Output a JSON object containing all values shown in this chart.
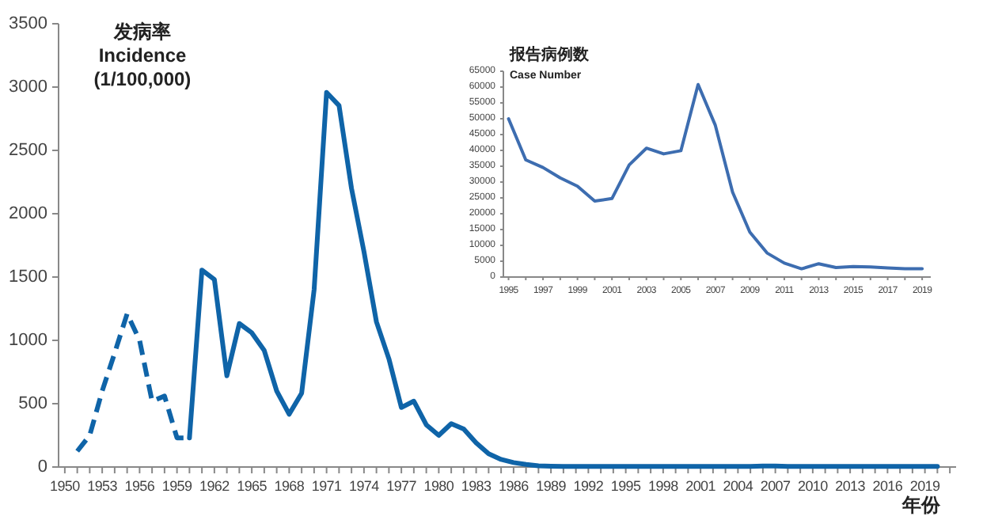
{
  "chart_data": [
    {
      "type": "line",
      "xlabel": "年份",
      "ylabel": "发病率\nIncidence\n(1/100,000)",
      "xlim": [
        1949.5,
        2021.5
      ],
      "ylim": [
        0,
        3500
      ],
      "yticks": [
        0,
        500,
        1000,
        1500,
        2000,
        2500,
        3000,
        3500
      ],
      "xticks": [
        1950,
        {
          "value": 1951,
          "label": null
        },
        {
          "value": 1952,
          "label": null
        },
        1953,
        {
          "value": 1954,
          "label": null
        },
        {
          "value": 1955,
          "label": null
        },
        1956,
        {
          "value": 1957,
          "label": null
        },
        {
          "value": 1958,
          "label": null
        },
        1959,
        {
          "value": 1960,
          "label": null
        },
        {
          "value": 1961,
          "label": null
        },
        1962,
        {
          "value": 1963,
          "label": null
        },
        {
          "value": 1964,
          "label": null
        },
        1965,
        {
          "value": 1966,
          "label": null
        },
        {
          "value": 1967,
          "label": null
        },
        1968,
        {
          "value": 1969,
          "label": null
        },
        {
          "value": 1970,
          "label": null
        },
        1971,
        {
          "value": 1972,
          "label": null
        },
        {
          "value": 1973,
          "label": null
        },
        1974,
        {
          "value": 1975,
          "label": null
        },
        {
          "value": 1976,
          "label": null
        },
        1977,
        {
          "value": 1978,
          "label": null
        },
        {
          "value": 1979,
          "label": null
        },
        1980,
        {
          "value": 1981,
          "label": null
        },
        {
          "value": 1982,
          "label": null
        },
        1983,
        {
          "value": 1984,
          "label": null
        },
        {
          "value": 1985,
          "label": null
        },
        1986,
        {
          "value": 1987,
          "label": null
        },
        {
          "value": 1988,
          "label": null
        },
        1989,
        {
          "value": 1990,
          "label": null
        },
        {
          "value": 1991,
          "label": null
        },
        1992,
        {
          "value": 1993,
          "label": null
        },
        {
          "value": 1994,
          "label": null
        },
        1995,
        {
          "value": 1996,
          "label": null
        },
        {
          "value": 1997,
          "label": null
        },
        1998,
        {
          "value": 1999,
          "label": null
        },
        {
          "value": 2000,
          "label": null
        },
        2001,
        {
          "value": 2002,
          "label": null
        },
        {
          "value": 2003,
          "label": null
        },
        2004,
        {
          "value": 2005,
          "label": null
        },
        {
          "value": 2006,
          "label": null
        },
        2007,
        {
          "value": 2008,
          "label": null
        },
        {
          "value": 2009,
          "label": null
        },
        2010,
        {
          "value": 2011,
          "label": null
        },
        {
          "value": 2012,
          "label": null
        },
        2013,
        {
          "value": 2014,
          "label": null
        },
        {
          "value": 2015,
          "label": null
        },
        2016,
        {
          "value": 2017,
          "label": null
        },
        {
          "value": 2018,
          "label": null
        },
        2019,
        {
          "value": 2020,
          "label": null
        },
        {
          "value": 2021,
          "label": null
        }
      ],
      "series": [
        {
          "color": "#0f64a8",
          "line_style": "dashed",
          "x": [
            1951,
            1952,
            1953,
            1954,
            1955,
            1956,
            1957,
            1958,
            1959,
            1960
          ],
          "values": [
            125,
            250,
            600,
            900,
            1210,
            1000,
            520,
            560,
            230,
            230
          ]
        },
        {
          "color": "#0f64a8",
          "line_style": "solid",
          "x": [
            1960,
            1961,
            1962,
            1963,
            1964,
            1965,
            1966,
            1967,
            1968,
            1969,
            1970,
            1971,
            1972,
            1973,
            1974,
            1975,
            1976,
            1977,
            1978,
            1979,
            1980,
            1981,
            1982,
            1983,
            1984,
            1985,
            1986,
            1987,
            1988,
            1989,
            1990,
            1991,
            1992,
            1993,
            1994,
            1995,
            1996,
            1997,
            1998,
            1999,
            2000,
            2001,
            2002,
            2003,
            2004,
            2005,
            2006,
            2007,
            2008,
            2009,
            2010,
            2011,
            2012,
            2013,
            2014,
            2015,
            2016,
            2017,
            2018,
            2019,
            2020
          ],
          "values": [
            230,
            1555,
            1480,
            720,
            1133,
            1060,
            920,
            600,
            417,
            583,
            1400,
            2958,
            2854,
            2200,
            1700,
            1146,
            854,
            470,
            520,
            333,
            250,
            342,
            300,
            190,
            104,
            60,
            35,
            20,
            10,
            7,
            5,
            5,
            5,
            5,
            5,
            5,
            5,
            5,
            5,
            5,
            5,
            5,
            5,
            5,
            5,
            5,
            8,
            8,
            5,
            5,
            5,
            5,
            5,
            5,
            5,
            5,
            5,
            5,
            5,
            5,
            5
          ]
        }
      ]
    },
    {
      "type": "line",
      "ylabel": "报告病例数\nCase Number",
      "xlim": [
        1994.7,
        2019.5
      ],
      "ylim": [
        0,
        65000
      ],
      "yticks": [
        0,
        5000,
        10000,
        15000,
        20000,
        25000,
        30000,
        35000,
        40000,
        45000,
        50000,
        55000,
        60000,
        65000
      ],
      "xticks": [
        1995,
        {
          "value": 1996,
          "label": null
        },
        1997,
        {
          "value": 1998,
          "label": null
        },
        1999,
        {
          "value": 2000,
          "label": null
        },
        2001,
        {
          "value": 2002,
          "label": null
        },
        2003,
        {
          "value": 2004,
          "label": null
        },
        2005,
        {
          "value": 2006,
          "label": null
        },
        2007,
        {
          "value": 2008,
          "label": null
        },
        2009,
        {
          "value": 2010,
          "label": null
        },
        2011,
        {
          "value": 2012,
          "label": null
        },
        2013,
        {
          "value": 2014,
          "label": null
        },
        2015,
        {
          "value": 2016,
          "label": null
        },
        2017,
        {
          "value": 2018,
          "label": null
        },
        2019
      ],
      "series": [
        {
          "color": "#3d6db0",
          "line_style": "solid",
          "x": [
            1995,
            1996,
            1997,
            1998,
            1999,
            2000,
            2001,
            2002,
            2003,
            2004,
            2005,
            2006,
            2007,
            2008,
            2009,
            2010,
            2011,
            2012,
            2013,
            2014,
            2015,
            2016,
            2017,
            2018,
            2019
          ],
          "values": [
            50000,
            37000,
            34600,
            31300,
            28700,
            24000,
            24800,
            35400,
            40700,
            38900,
            39900,
            60800,
            47900,
            26800,
            14200,
            7600,
            4400,
            2600,
            4200,
            3000,
            3300,
            3200,
            2900,
            2600,
            2600
          ]
        }
      ]
    }
  ]
}
